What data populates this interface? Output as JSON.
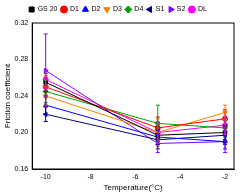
{
  "chart_data": {
    "type": "line",
    "x_label": "Temperature(°C)",
    "y_label": "Friction coefficient",
    "x": [
      -10,
      -5,
      -2
    ],
    "xlim": [
      -10.6,
      -1.6
    ],
    "xticks": [
      -10,
      -8,
      -6,
      -4,
      -2
    ],
    "ylim": [
      0.16,
      0.32
    ],
    "yticks": [
      {
        "value": 0.16,
        "label": "0.16"
      },
      {
        "value": 0.2,
        "label": "0.20"
      },
      {
        "value": 0.24,
        "label": "0.24"
      },
      {
        "value": 0.28,
        "label": "0.28"
      },
      {
        "value": 0.32,
        "label": "0.32"
      }
    ],
    "grid": false,
    "legend": "top",
    "series": [
      {
        "name": "GS 20",
        "color": "#000000",
        "marker": "square",
        "values": [
          0.255,
          0.197,
          0.2
        ],
        "errors": [
          0.01,
          0.01,
          0.008
        ]
      },
      {
        "name": "D1",
        "color": "#ff0000",
        "marker": "circle",
        "values": [
          0.25,
          0.205,
          0.215
        ],
        "errors": [
          0.012,
          0.012,
          0.01
        ]
      },
      {
        "name": "D2",
        "color": "#0000ff",
        "marker": "triangle-up",
        "values": [
          0.23,
          0.195,
          0.19
        ],
        "errors": [
          0.01,
          0.008,
          0.008
        ]
      },
      {
        "name": "D3",
        "color": "#ff8000",
        "marker": "triangle-down",
        "values": [
          0.24,
          0.2,
          0.222
        ],
        "errors": [
          0.01,
          0.015,
          0.008
        ]
      },
      {
        "name": "D4",
        "color": "#00a000",
        "marker": "diamond",
        "values": [
          0.245,
          0.21,
          0.205
        ],
        "errors": [
          0.012,
          0.02,
          0.01
        ]
      },
      {
        "name": "S1",
        "color": "#000080",
        "marker": "triangle-left",
        "values": [
          0.22,
          0.192,
          0.197
        ],
        "errors": [
          0.008,
          0.01,
          0.01
        ]
      },
      {
        "name": "S2",
        "color": "#8000ff",
        "marker": "triangle-right",
        "values": [
          0.268,
          0.188,
          0.19
        ],
        "errors": [
          0.04,
          0.01,
          0.012
        ]
      },
      {
        "name": "DL",
        "color": "#ff00ff",
        "marker": "circle",
        "values": [
          0.258,
          0.2,
          0.208
        ],
        "errors": [
          0.01,
          0.012,
          0.01
        ]
      }
    ]
  }
}
